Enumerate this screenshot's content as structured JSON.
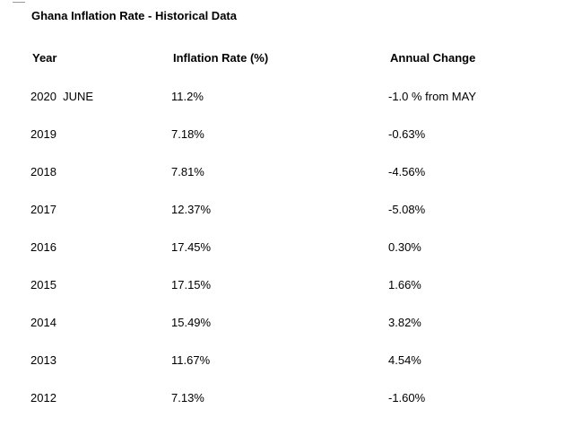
{
  "title": "Ghana Inflation Rate - Historical Data",
  "headers": {
    "year": "Year",
    "rate": "Inflation Rate (%)",
    "change": "Annual Change"
  },
  "rows": [
    {
      "year": "2020  JUNE",
      "rate": "11.2%",
      "change": "-1.0 % from MAY"
    },
    {
      "year": "2019",
      "rate": "7.18%",
      "change": "-0.63%"
    },
    {
      "year": "2018",
      "rate": "7.81%",
      "change": "-4.56%"
    },
    {
      "year": "2017",
      "rate": "12.37%",
      "change": "-5.08%"
    },
    {
      "year": "2016",
      "rate": "17.45%",
      "change": "0.30%"
    },
    {
      "year": "2015",
      "rate": "17.15%",
      "change": "1.66%"
    },
    {
      "year": "2014",
      "rate": "15.49%",
      "change": "3.82%"
    },
    {
      "year": "2013",
      "rate": "11.67%",
      "change": "4.54%"
    },
    {
      "year": "2012",
      "rate": "7.13%",
      "change": "-1.60%"
    }
  ]
}
